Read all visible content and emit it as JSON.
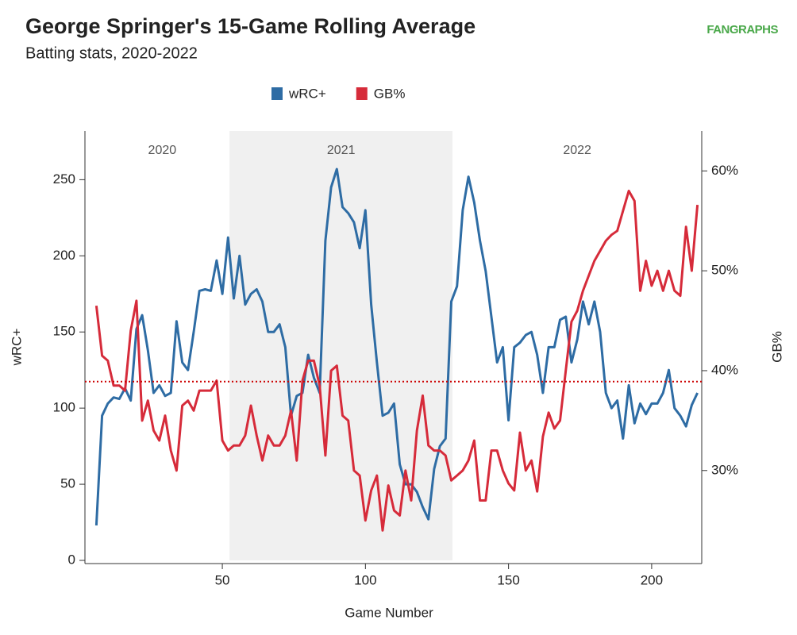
{
  "chart_data": {
    "type": "line",
    "title": "George Springer's 15-Game Rolling Average",
    "subtitle": "Batting stats, 2020-2022",
    "logo": "FANGRAPHS",
    "xlabel": "Game Number",
    "ylabel": "wRC+",
    "y2label": "GB%",
    "x": [
      6,
      8,
      10,
      12,
      14,
      16,
      18,
      20,
      22,
      24,
      26,
      28,
      30,
      32,
      34,
      36,
      38,
      40,
      42,
      44,
      46,
      48,
      50,
      52,
      54,
      56,
      58,
      60,
      62,
      64,
      66,
      68,
      70,
      72,
      74,
      76,
      78,
      80,
      82,
      84,
      86,
      88,
      90,
      92,
      94,
      96,
      98,
      100,
      102,
      104,
      106,
      108,
      110,
      112,
      114,
      116,
      118,
      120,
      122,
      124,
      126,
      128,
      130,
      132,
      134,
      136,
      138,
      140,
      142,
      144,
      146,
      148,
      150,
      152,
      154,
      156,
      158,
      160,
      162,
      164,
      166,
      168,
      170,
      172,
      174,
      176,
      178,
      180,
      182,
      184,
      186,
      188,
      190,
      192,
      194,
      196,
      198,
      200,
      202,
      204,
      206,
      208,
      210,
      212,
      214,
      216
    ],
    "series": [
      {
        "name": "wRC+",
        "color": "#2e6ca4",
        "values": [
          23,
          95,
          103,
          107,
          106,
          113,
          105,
          152,
          161,
          138,
          110,
          115,
          108,
          110,
          157,
          130,
          125,
          150,
          177,
          178,
          177,
          197,
          175,
          212,
          172,
          200,
          168,
          175,
          178,
          170,
          150,
          150,
          155,
          140,
          95,
          108,
          110,
          135,
          120,
          110,
          210,
          245,
          257,
          232,
          228,
          222,
          205,
          230,
          168,
          130,
          95,
          97,
          103,
          63,
          50,
          50,
          45,
          35,
          27,
          60,
          75,
          80,
          170,
          180,
          230,
          252,
          235,
          210,
          190,
          160,
          130,
          140,
          92,
          140,
          143,
          148,
          150,
          135,
          110,
          140,
          140,
          158,
          160,
          130,
          145,
          170,
          155,
          170,
          150,
          110,
          100,
          105,
          80,
          115,
          90,
          103,
          96,
          103,
          103,
          110,
          125,
          100,
          95,
          88,
          102,
          110
        ]
      },
      {
        "name": "GB%",
        "color": "#d62b3a",
        "axis": "y2",
        "values": [
          46.5,
          41.5,
          41,
          38.5,
          38.5,
          38,
          44,
          47,
          35,
          37,
          34,
          33,
          35.5,
          32,
          30,
          36.5,
          37,
          36,
          38,
          38,
          38,
          39,
          33,
          32,
          32.5,
          32.5,
          33.5,
          36.5,
          33.5,
          31,
          33.5,
          32.5,
          32.5,
          33.5,
          36,
          31,
          39,
          41,
          41,
          38.5,
          31.5,
          40,
          40.5,
          35.5,
          35,
          30,
          29.5,
          25,
          28,
          29.5,
          24,
          28.5,
          26,
          25.5,
          30,
          27,
          34,
          37.5,
          32.5,
          32,
          32,
          31.5,
          29,
          29.5,
          30,
          31,
          33,
          27,
          27,
          32,
          32,
          30,
          28.7,
          28,
          33.8,
          30,
          31,
          27.9,
          33.4,
          35.8,
          34.2,
          35,
          40,
          44.9,
          46,
          48,
          49.5,
          51,
          52,
          53,
          53.6,
          54,
          56,
          58,
          57,
          48,
          51,
          48.5,
          50,
          48,
          50,
          48,
          47.5,
          54.4,
          50,
          56.6
        ]
      }
    ],
    "xlim": [
      2,
      217.5
    ],
    "xticks": [
      50,
      100,
      150,
      200
    ],
    "ylim": [
      0,
      282
    ],
    "yticks": [
      0,
      50,
      100,
      150,
      200,
      250
    ],
    "y2lim": [
      21,
      64
    ],
    "y2ticks": [
      {
        "value": 30,
        "label": "30%"
      },
      {
        "value": 40,
        "label": "40%"
      },
      {
        "value": 50,
        "label": "50%"
      },
      {
        "value": 60,
        "label": "60%"
      }
    ],
    "shaded_regions": [
      {
        "from": 52.5,
        "to": 130.4,
        "color": "#f0f0f0"
      }
    ],
    "annotations": [
      {
        "text": "2020",
        "x": 29
      },
      {
        "text": "2021",
        "x": 91.5
      },
      {
        "text": "2022",
        "x": 174
      }
    ],
    "reference_line": {
      "value": 38.9,
      "axis": "y2",
      "color": "#cc0000"
    },
    "legend": "top"
  }
}
